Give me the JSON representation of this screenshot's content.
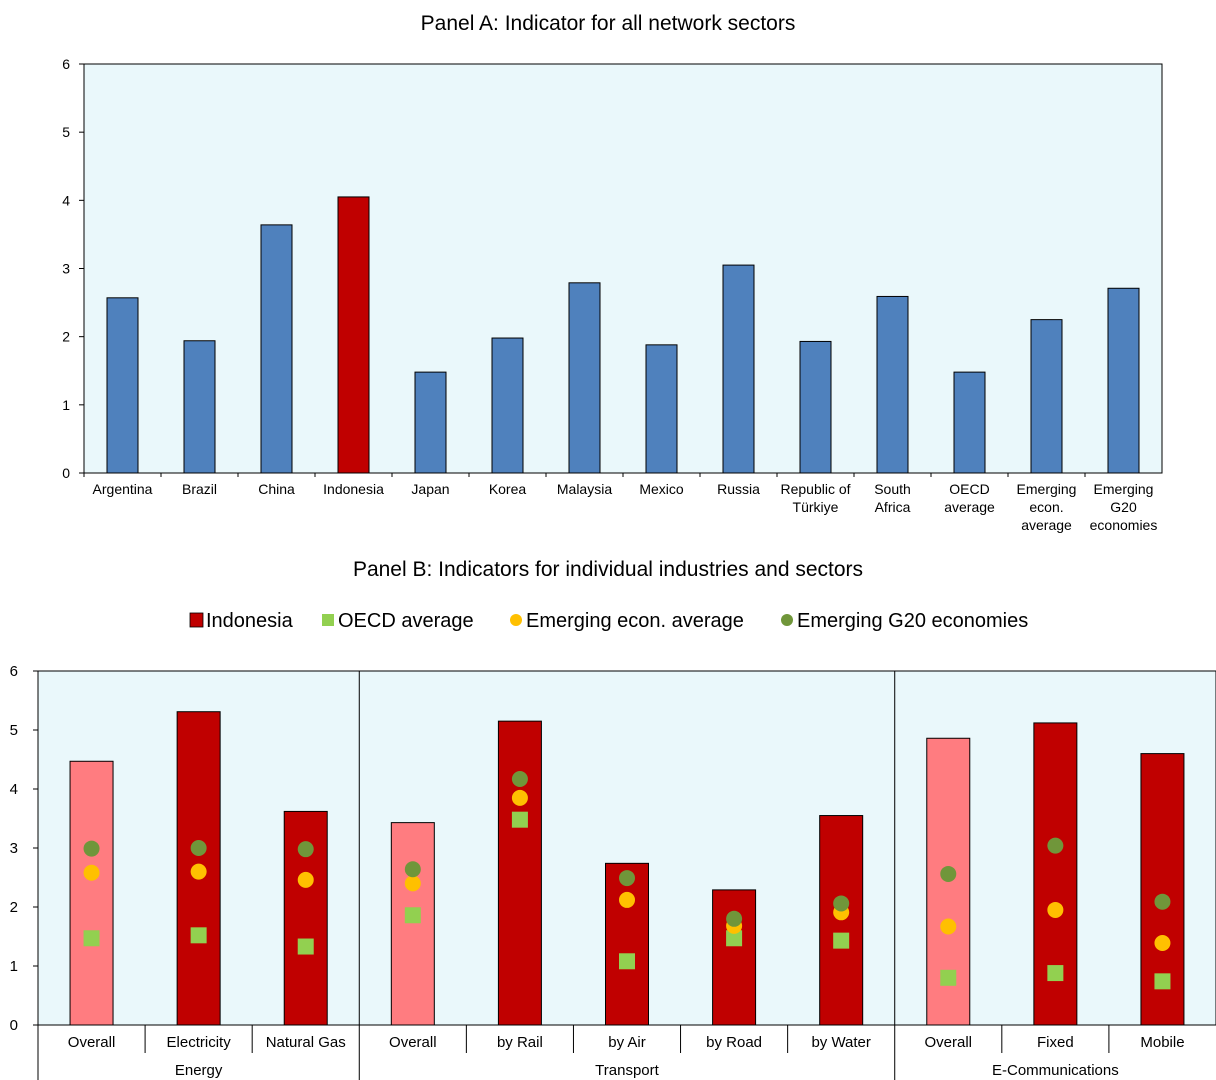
{
  "chart_data": [
    {
      "type": "bar",
      "title": "Panel A: Indicator for all network sectors",
      "ylim": [
        0,
        6
      ],
      "yticks": [
        0,
        1,
        2,
        3,
        4,
        5,
        6
      ],
      "grid": false,
      "categories": [
        [
          "Argentina"
        ],
        [
          "Brazil"
        ],
        [
          "China"
        ],
        [
          "Indonesia"
        ],
        [
          "Japan"
        ],
        [
          "Korea"
        ],
        [
          "Malaysia"
        ],
        [
          "Mexico"
        ],
        [
          "Russia"
        ],
        [
          "Republic of",
          "Türkiye"
        ],
        [
          "South",
          "Africa"
        ],
        [
          "OECD",
          "average"
        ],
        [
          "Emerging",
          "econ.",
          "average"
        ],
        [
          "Emerging",
          "G20",
          "economies"
        ]
      ],
      "values": [
        2.57,
        1.94,
        3.64,
        4.05,
        1.48,
        1.98,
        2.79,
        1.88,
        3.05,
        1.93,
        2.59,
        1.48,
        2.25,
        2.71
      ],
      "highlight_index": 3,
      "colors": {
        "default": "#4f81bd",
        "highlight": "#c00000"
      }
    },
    {
      "type": "bar",
      "title": "Panel B: Indicators for individual industries and sectors",
      "ylim": [
        0,
        6
      ],
      "yticks": [
        0,
        1,
        2,
        3,
        4,
        5,
        6
      ],
      "grid": false,
      "legend_position": "top",
      "groups": [
        {
          "label": "Energy",
          "categories": [
            "Overall",
            "Electricity",
            "Natural Gas"
          ]
        },
        {
          "label": "Transport",
          "categories": [
            "Overall",
            "by Rail",
            "by Air",
            "by Road",
            "by Water"
          ]
        },
        {
          "label": "E-Communications",
          "categories": [
            "Overall",
            "Fixed",
            "Mobile"
          ]
        }
      ],
      "overall_flags": [
        true,
        false,
        false,
        true,
        false,
        false,
        false,
        false,
        true,
        false,
        false
      ],
      "series": [
        {
          "name": "Indonesia",
          "marker": "bar",
          "color": "#c00000",
          "overall_color": "#ff7c80",
          "values": [
            4.47,
            5.31,
            3.62,
            3.43,
            5.15,
            2.74,
            2.29,
            3.55,
            4.86,
            5.12,
            4.6
          ]
        },
        {
          "name": "OECD average",
          "marker": "square",
          "color": "#92d050",
          "values": [
            1.47,
            1.52,
            1.33,
            1.86,
            3.48,
            1.08,
            1.47,
            1.43,
            0.8,
            0.88,
            0.74
          ]
        },
        {
          "name": "Emerging econ. average",
          "marker": "circle",
          "color": "#ffc000",
          "values": [
            2.58,
            2.6,
            2.46,
            2.4,
            3.85,
            2.12,
            1.68,
            1.91,
            1.67,
            1.95,
            1.39
          ]
        },
        {
          "name": "Emerging G20 economies",
          "marker": "circle",
          "color": "#70963a",
          "values": [
            2.99,
            3.0,
            2.98,
            2.64,
            4.17,
            2.49,
            1.8,
            2.06,
            2.56,
            3.04,
            2.09
          ]
        }
      ]
    }
  ]
}
